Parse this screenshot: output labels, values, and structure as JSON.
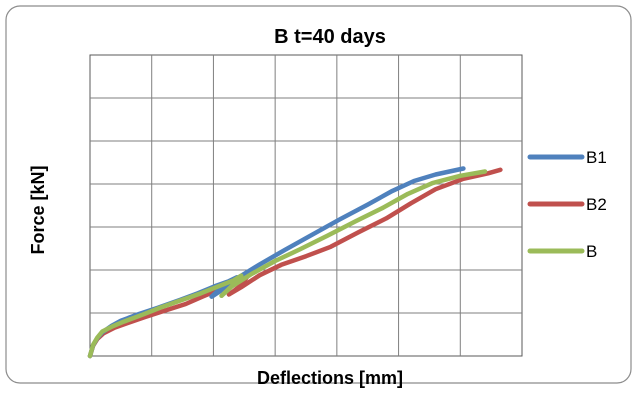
{
  "chart_data": {
    "type": "line",
    "title": "B  t=40 days",
    "xlabel": "Deflections [mm]",
    "ylabel": "Force [kN]",
    "grid": true,
    "legend_position": "right",
    "x_gridlines": 7,
    "y_gridlines": 7,
    "series": [
      {
        "name": "B1",
        "color": "#4f81bd",
        "points": [
          [
            0.0,
            0.0
          ],
          [
            0.05,
            0.25
          ],
          [
            0.12,
            0.42
          ],
          [
            0.2,
            0.55
          ],
          [
            0.35,
            0.7
          ],
          [
            0.5,
            0.82
          ],
          [
            0.8,
            0.98
          ],
          [
            1.1,
            1.12
          ],
          [
            1.45,
            1.3
          ],
          [
            1.75,
            1.46
          ],
          [
            2.02,
            1.62
          ],
          [
            2.25,
            1.74
          ],
          [
            2.38,
            1.83
          ],
          [
            2.25,
            1.68
          ],
          [
            2.1,
            1.5
          ],
          [
            1.97,
            1.38
          ],
          [
            2.12,
            1.58
          ],
          [
            2.4,
            1.82
          ],
          [
            2.75,
            2.13
          ],
          [
            3.15,
            2.46
          ],
          [
            3.6,
            2.82
          ],
          [
            4.05,
            3.18
          ],
          [
            4.5,
            3.52
          ],
          [
            4.9,
            3.84
          ],
          [
            5.25,
            4.07
          ],
          [
            5.6,
            4.22
          ],
          [
            6.05,
            4.36
          ]
        ]
      },
      {
        "name": "B2",
        "color": "#c0504d",
        "points": [
          [
            0.0,
            0.0
          ],
          [
            0.05,
            0.24
          ],
          [
            0.12,
            0.4
          ],
          [
            0.22,
            0.53
          ],
          [
            0.4,
            0.66
          ],
          [
            0.6,
            0.76
          ],
          [
            0.9,
            0.91
          ],
          [
            1.2,
            1.05
          ],
          [
            1.55,
            1.21
          ],
          [
            1.82,
            1.38
          ],
          [
            2.1,
            1.55
          ],
          [
            2.4,
            1.72
          ],
          [
            2.55,
            1.85
          ],
          [
            2.45,
            1.65
          ],
          [
            2.32,
            1.5
          ],
          [
            2.25,
            1.43
          ],
          [
            2.45,
            1.6
          ],
          [
            2.75,
            1.88
          ],
          [
            3.1,
            2.12
          ],
          [
            3.5,
            2.32
          ],
          [
            3.9,
            2.54
          ],
          [
            4.35,
            2.88
          ],
          [
            4.8,
            3.2
          ],
          [
            5.2,
            3.55
          ],
          [
            5.6,
            3.88
          ],
          [
            6.05,
            4.12
          ],
          [
            6.45,
            4.25
          ],
          [
            6.65,
            4.33
          ]
        ]
      },
      {
        "name": "B",
        "color": "#9bbb59",
        "points": [
          [
            0.0,
            0.0
          ],
          [
            0.05,
            0.26
          ],
          [
            0.12,
            0.43
          ],
          [
            0.2,
            0.57
          ],
          [
            0.38,
            0.7
          ],
          [
            0.55,
            0.8
          ],
          [
            0.85,
            0.96
          ],
          [
            1.15,
            1.13
          ],
          [
            1.5,
            1.31
          ],
          [
            1.8,
            1.46
          ],
          [
            2.08,
            1.62
          ],
          [
            2.33,
            1.76
          ],
          [
            2.45,
            1.87
          ],
          [
            2.35,
            1.7
          ],
          [
            2.22,
            1.52
          ],
          [
            2.13,
            1.4
          ],
          [
            2.3,
            1.62
          ],
          [
            2.62,
            1.91
          ],
          [
            3.0,
            2.21
          ],
          [
            3.4,
            2.48
          ],
          [
            3.85,
            2.8
          ],
          [
            4.3,
            3.13
          ],
          [
            4.75,
            3.45
          ],
          [
            5.15,
            3.77
          ],
          [
            5.55,
            4.02
          ],
          [
            6.0,
            4.19
          ],
          [
            6.4,
            4.29
          ]
        ]
      }
    ]
  }
}
